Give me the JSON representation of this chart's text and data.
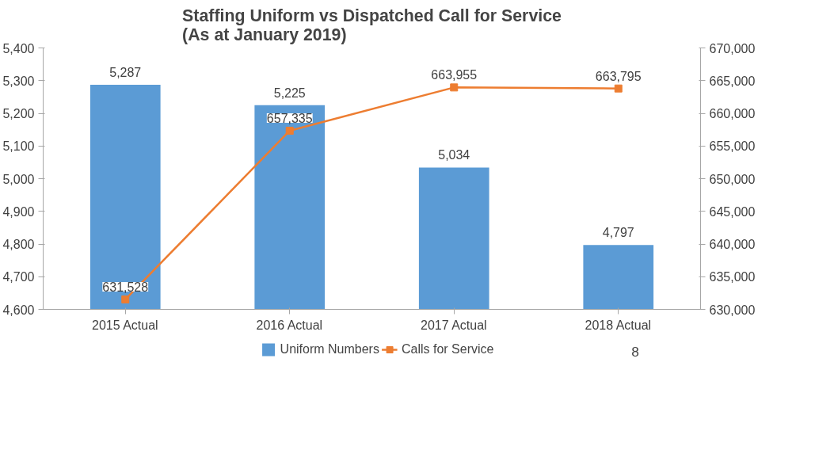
{
  "chart_data": {
    "type": "bar",
    "title": "Staffing Uniform vs Dispatched Call for Service\n(As at January 2019)",
    "categories": [
      "2015 Actual",
      "2016 Actual",
      "2017 Actual",
      "2018 Actual"
    ],
    "series": [
      {
        "name": "Uniform Numbers",
        "color": "#5b9bd5",
        "values": [
          5287,
          5225,
          5034,
          4797
        ],
        "value_labels": [
          "5,287",
          "5,225",
          "5,034",
          "4,797"
        ]
      },
      {
        "name": "Calls for Service",
        "type": "line",
        "axis": "y2",
        "color": "#ed7d31",
        "marker": "square",
        "values": [
          631528,
          657335,
          663955,
          663795
        ],
        "value_labels": [
          "631,528",
          "657,335",
          "663,955",
          "663,795"
        ]
      }
    ],
    "ylim": [
      4600,
      5400
    ],
    "yticks": [
      {
        "value": 4600,
        "label": "4,600"
      },
      {
        "value": 4700,
        "label": "4,700"
      },
      {
        "value": 4800,
        "label": "4,800"
      },
      {
        "value": 4900,
        "label": "4,900"
      },
      {
        "value": 5000,
        "label": "5,000"
      },
      {
        "value": 5100,
        "label": "5,100"
      },
      {
        "value": 5200,
        "label": "5,200"
      },
      {
        "value": 5300,
        "label": "5,300"
      },
      {
        "value": 5400,
        "label": "5,400"
      }
    ],
    "y2lim": [
      630000,
      670000
    ],
    "y2ticks": [
      {
        "value": 630000,
        "label": "630,000"
      },
      {
        "value": 635000,
        "label": "635,000"
      },
      {
        "value": 640000,
        "label": "640,000"
      },
      {
        "value": 645000,
        "label": "645,000"
      },
      {
        "value": 650000,
        "label": "650,000"
      },
      {
        "value": 655000,
        "label": "655,000"
      },
      {
        "value": 660000,
        "label": "660,000"
      },
      {
        "value": 665000,
        "label": "665,000"
      },
      {
        "value": 670000,
        "label": "670,000"
      }
    ],
    "legend": "bottom",
    "annotations": [
      "8"
    ]
  }
}
